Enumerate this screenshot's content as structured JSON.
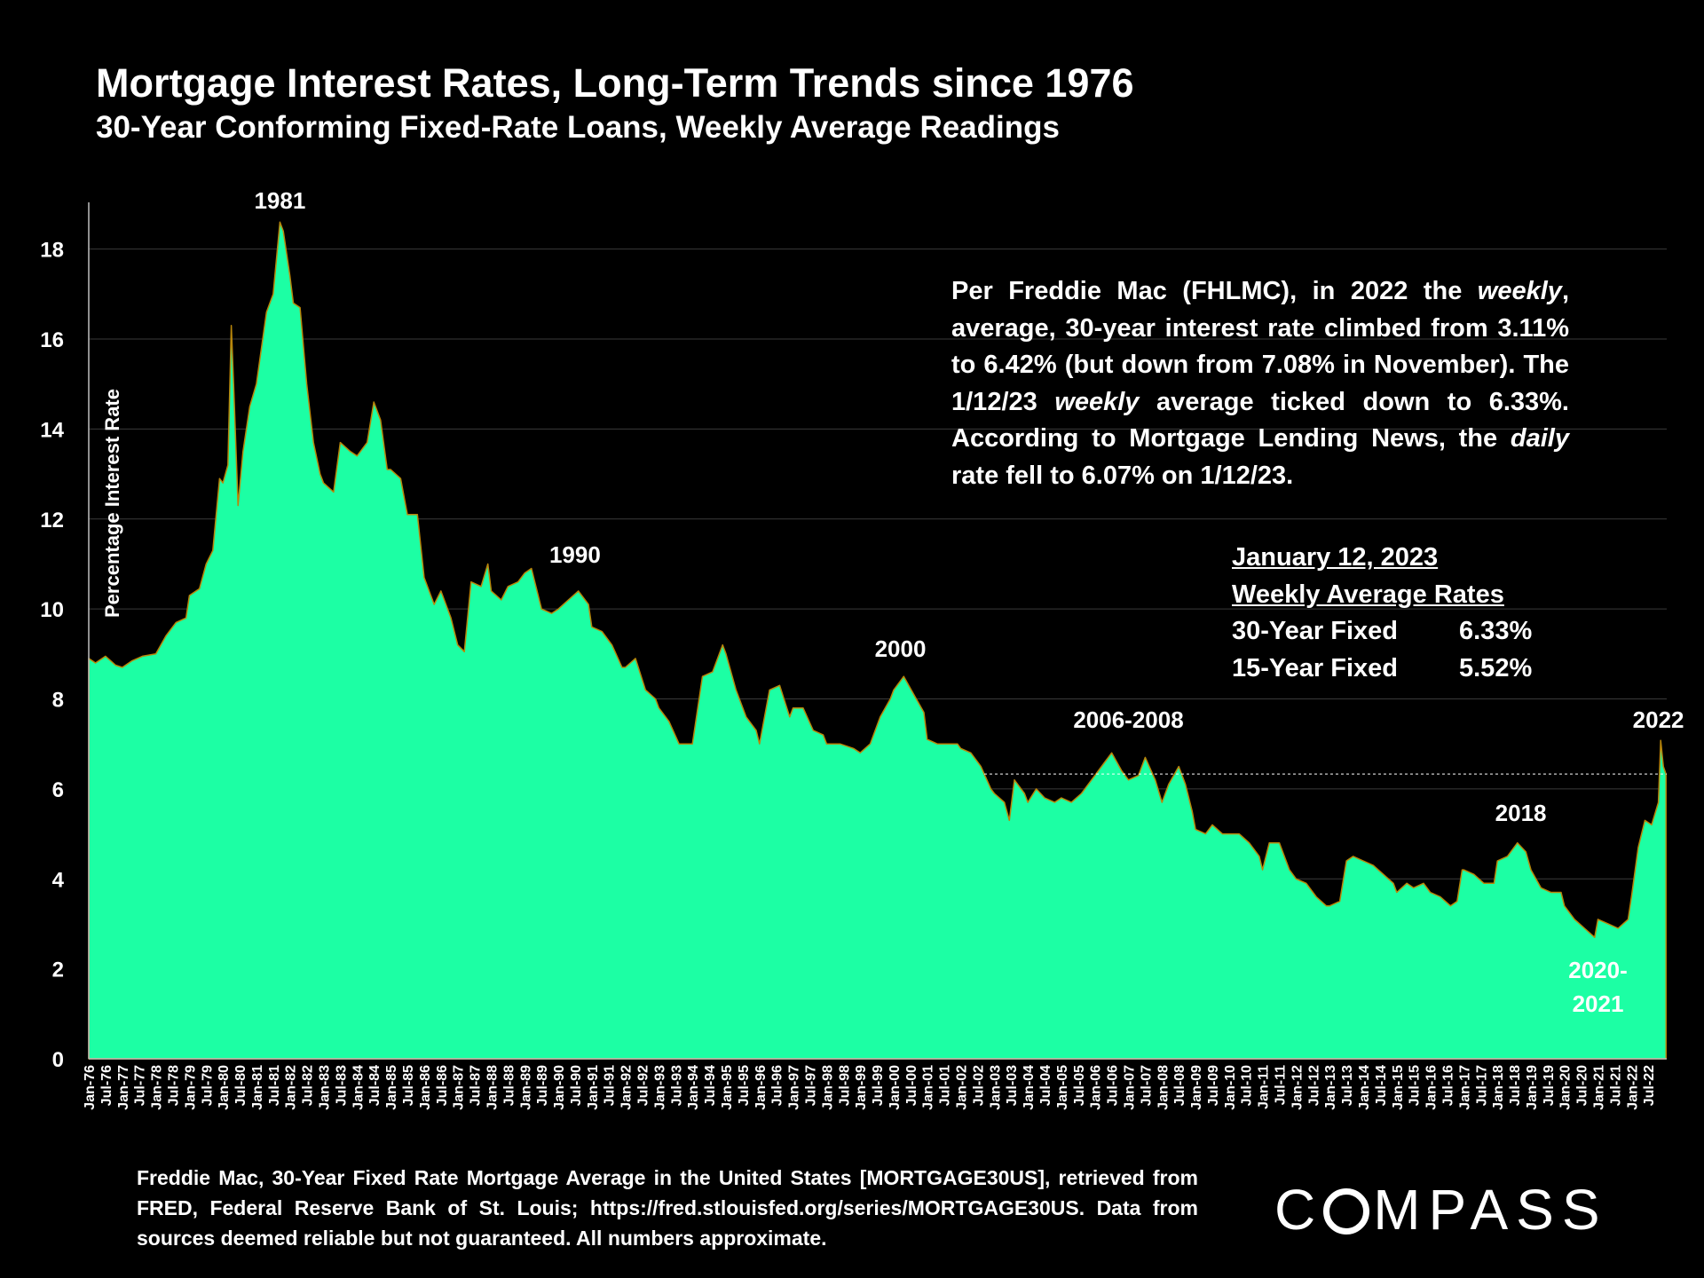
{
  "chart_data": {
    "type": "area",
    "title": "Mortgage Interest Rates, Long-Term Trends since 1976",
    "subtitle": "30-Year Conforming Fixed-Rate Loans, Weekly Average Readings",
    "ylabel": "Percentage Interest Rate",
    "xlabel": "",
    "ylim": [
      0,
      19
    ],
    "yticks": [
      0,
      2,
      4,
      6,
      8,
      10,
      12,
      14,
      16,
      18
    ],
    "grid": true,
    "fill_color": "#1cffa4",
    "edge_color": "#b8860b",
    "x_start": 1976.0,
    "x_end": 2023.05,
    "xtick_labels": [
      "Jan-76",
      "Jul-76",
      "Jan-77",
      "Jul-77",
      "Jan-78",
      "Jul-78",
      "Jan-79",
      "Jul-79",
      "Jan-80",
      "Jul-80",
      "Jan-81",
      "Jul-81",
      "Jan-82",
      "Jul-82",
      "Jan-83",
      "Jul-83",
      "Jan-84",
      "Jul-84",
      "Jan-85",
      "Jul-85",
      "Jan-86",
      "Jul-86",
      "Jan-87",
      "Jul-87",
      "Jan-88",
      "Jul-88",
      "Jan-89",
      "Jul-89",
      "Jan-90",
      "Jul-90",
      "Jan-91",
      "Jul-91",
      "Jan-92",
      "Jul-92",
      "Jan-93",
      "Jul-93",
      "Jan-94",
      "Jul-94",
      "Jan-95",
      "Jul-95",
      "Jan-96",
      "Jul-96",
      "Jan-97",
      "Jul-97",
      "Jan-98",
      "Jul-98",
      "Jan-99",
      "Jul-99",
      "Jan-00",
      "Jul-00",
      "Jan-01",
      "Jul-01",
      "Jan-02",
      "Jul-02",
      "Jan-03",
      "Jul-03",
      "Jan-04",
      "Jul-04",
      "Jan-05",
      "Jul-05",
      "Jan-06",
      "Jul-06",
      "Jan-07",
      "Jul-07",
      "Jan-08",
      "Jul-08",
      "Jan-09",
      "Jul-09",
      "Jan-10",
      "Jul-10",
      "Jan-11",
      "Jul-11",
      "Jan-12",
      "Jul-12",
      "Jan-13",
      "Jul-13",
      "Jan-14",
      "Jul-14",
      "Jan-15",
      "Jul-15",
      "Jan-16",
      "Jul-16",
      "Jan-17",
      "Jul-17",
      "Jan-18",
      "Jul-18",
      "Jan-19",
      "Jul-19",
      "Jan-20",
      "Jul-20",
      "Jan-21",
      "Jul-21",
      "Jan-22",
      "Jul-22"
    ],
    "series": [
      {
        "name": "30-Year Fixed Rate (weekly avg)",
        "x": [
          1976.0,
          1976.2,
          1976.5,
          1976.8,
          1977.0,
          1977.3,
          1977.6,
          1978.0,
          1978.3,
          1978.6,
          1978.9,
          1979.0,
          1979.3,
          1979.5,
          1979.7,
          1979.9,
          1980.0,
          1980.15,
          1980.25,
          1980.33,
          1980.45,
          1980.6,
          1980.8,
          1981.0,
          1981.3,
          1981.5,
          1981.7,
          1981.8,
          1982.0,
          1982.1,
          1982.3,
          1982.5,
          1982.7,
          1982.9,
          1983.0,
          1983.3,
          1983.5,
          1983.8,
          1984.0,
          1984.3,
          1984.5,
          1984.7,
          1984.9,
          1985.0,
          1985.3,
          1985.5,
          1985.8,
          1986.0,
          1986.3,
          1986.5,
          1986.8,
          1987.0,
          1987.2,
          1987.4,
          1987.7,
          1987.9,
          1988.0,
          1988.3,
          1988.5,
          1988.8,
          1989.0,
          1989.2,
          1989.5,
          1989.8,
          1990.0,
          1990.3,
          1990.6,
          1990.9,
          1991.0,
          1991.3,
          1991.6,
          1991.9,
          1992.0,
          1992.3,
          1992.6,
          1992.9,
          1993.0,
          1993.3,
          1993.6,
          1993.8,
          1994.0,
          1994.3,
          1994.6,
          1994.9,
          1995.0,
          1995.3,
          1995.6,
          1995.9,
          1996.0,
          1996.3,
          1996.6,
          1996.9,
          1997.0,
          1997.3,
          1997.6,
          1997.9,
          1998.0,
          1998.4,
          1998.8,
          1999.0,
          1999.3,
          1999.6,
          1999.9,
          2000.0,
          2000.3,
          2000.6,
          2000.9,
          2001.0,
          2001.3,
          2001.6,
          2001.9,
          2002.0,
          2002.3,
          2002.6,
          2002.9,
          2003.0,
          2003.3,
          2003.45,
          2003.6,
          2003.9,
          2004.0,
          2004.25,
          2004.5,
          2004.8,
          2005.0,
          2005.3,
          2005.6,
          2005.9,
          2006.0,
          2006.3,
          2006.5,
          2006.8,
          2007.0,
          2007.3,
          2007.5,
          2007.8,
          2008.0,
          2008.2,
          2008.5,
          2008.7,
          2008.9,
          2009.0,
          2009.3,
          2009.5,
          2009.8,
          2010.0,
          2010.3,
          2010.6,
          2010.9,
          2011.0,
          2011.2,
          2011.5,
          2011.8,
          2012.0,
          2012.3,
          2012.6,
          2012.9,
          2013.0,
          2013.3,
          2013.5,
          2013.7,
          2014.0,
          2014.3,
          2014.6,
          2014.9,
          2015.0,
          2015.3,
          2015.5,
          2015.8,
          2016.0,
          2016.3,
          2016.6,
          2016.8,
          2016.95,
          2017.0,
          2017.3,
          2017.6,
          2017.9,
          2018.0,
          2018.3,
          2018.6,
          2018.85,
          2019.0,
          2019.3,
          2019.6,
          2019.9,
          2020.0,
          2020.3,
          2020.6,
          2020.9,
          2021.0,
          2021.3,
          2021.6,
          2021.9,
          2022.0,
          2022.2,
          2022.4,
          2022.6,
          2022.8,
          2022.87,
          2022.95,
          2023.03
        ],
        "values": [
          8.9,
          8.8,
          8.95,
          8.75,
          8.7,
          8.85,
          8.95,
          9.0,
          9.4,
          9.7,
          9.8,
          10.3,
          10.45,
          11.0,
          11.3,
          12.9,
          12.8,
          13.2,
          16.3,
          14.8,
          12.3,
          13.5,
          14.5,
          15.0,
          16.6,
          17.0,
          18.6,
          18.4,
          17.4,
          16.8,
          16.7,
          15.0,
          13.7,
          13.0,
          12.8,
          12.6,
          13.7,
          13.5,
          13.4,
          13.7,
          14.6,
          14.2,
          13.1,
          13.1,
          12.9,
          12.1,
          12.1,
          10.7,
          10.1,
          10.4,
          9.8,
          9.2,
          9.05,
          10.6,
          10.5,
          11.0,
          10.4,
          10.2,
          10.5,
          10.6,
          10.8,
          10.9,
          10.0,
          9.9,
          10.0,
          10.2,
          10.4,
          10.1,
          9.6,
          9.5,
          9.2,
          8.7,
          8.7,
          8.9,
          8.2,
          8.0,
          7.8,
          7.5,
          7.0,
          7.0,
          7.0,
          8.5,
          8.6,
          9.2,
          9.0,
          8.2,
          7.6,
          7.3,
          7.0,
          8.2,
          8.3,
          7.6,
          7.8,
          7.8,
          7.3,
          7.2,
          7.0,
          7.0,
          6.9,
          6.8,
          7.0,
          7.6,
          8.0,
          8.2,
          8.5,
          8.1,
          7.7,
          7.1,
          7.0,
          7.0,
          7.0,
          6.9,
          6.8,
          6.5,
          6.0,
          5.9,
          5.7,
          5.3,
          6.2,
          5.9,
          5.7,
          6.0,
          5.8,
          5.7,
          5.8,
          5.7,
          5.9,
          6.2,
          6.3,
          6.6,
          6.8,
          6.4,
          6.2,
          6.3,
          6.7,
          6.2,
          5.7,
          6.1,
          6.5,
          6.1,
          5.5,
          5.1,
          5.0,
          5.2,
          5.0,
          5.0,
          5.0,
          4.8,
          4.5,
          4.2,
          4.8,
          4.8,
          4.2,
          4.0,
          3.9,
          3.6,
          3.4,
          3.4,
          3.5,
          4.4,
          4.5,
          4.4,
          4.3,
          4.1,
          3.9,
          3.7,
          3.9,
          3.8,
          3.9,
          3.7,
          3.6,
          3.4,
          3.5,
          4.2,
          4.2,
          4.1,
          3.9,
          3.9,
          4.4,
          4.5,
          4.8,
          4.6,
          4.2,
          3.8,
          3.7,
          3.7,
          3.4,
          3.1,
          2.9,
          2.7,
          3.1,
          3.0,
          2.9,
          3.1,
          3.6,
          4.7,
          5.3,
          5.2,
          5.7,
          7.08,
          6.5,
          6.33
        ]
      }
    ],
    "reference_line": {
      "value": 6.33,
      "style": "dashed",
      "from_x": 2002.7
    },
    "annotations": [
      {
        "text": "1981",
        "x": 1981.7
      },
      {
        "text": "1990",
        "x": 1990.5
      },
      {
        "text": "2000",
        "x": 2000.2
      },
      {
        "text": "2006-2008",
        "x": 2007.0
      },
      {
        "text": "2018",
        "x": 2018.7
      },
      {
        "text": "2020-",
        "x": 2021.0
      },
      {
        "text": "2021",
        "x": 2021.0
      },
      {
        "text": "2022",
        "x": 2022.8
      }
    ]
  },
  "note": {
    "part1": "Per Freddie Mac (FHLMC), in 2022 the ",
    "em1": "weekly",
    "part2": ", average, 30-year interest rate climbed from 3.11% to 6.42% (but down from 7.08% in November). The 1/12/23 ",
    "em2": "weekly",
    "part3": " average ticked down to 6.33%. According to Mortgage Lending News, the ",
    "em3": "daily",
    "part4": " rate fell to 6.07% on 1/12/23."
  },
  "rates_box": {
    "date": "January 12, 2023",
    "heading": "Weekly Average Rates",
    "rows": [
      {
        "label": "30-Year Fixed",
        "value": "6.33%"
      },
      {
        "label": "15-Year Fixed",
        "value": "5.52%"
      }
    ]
  },
  "source": "Freddie Mac, 30-Year Fixed Rate Mortgage Average in the United States [MORTGAGE30US], retrieved from FRED, Federal Reserve Bank of St. Louis; https://fred.stlouisfed.org/series/MORTGAGE30US. Data from sources deemed reliable but not guaranteed. All numbers approximate.",
  "logo": {
    "pre": "C",
    "post": "MPASS"
  }
}
